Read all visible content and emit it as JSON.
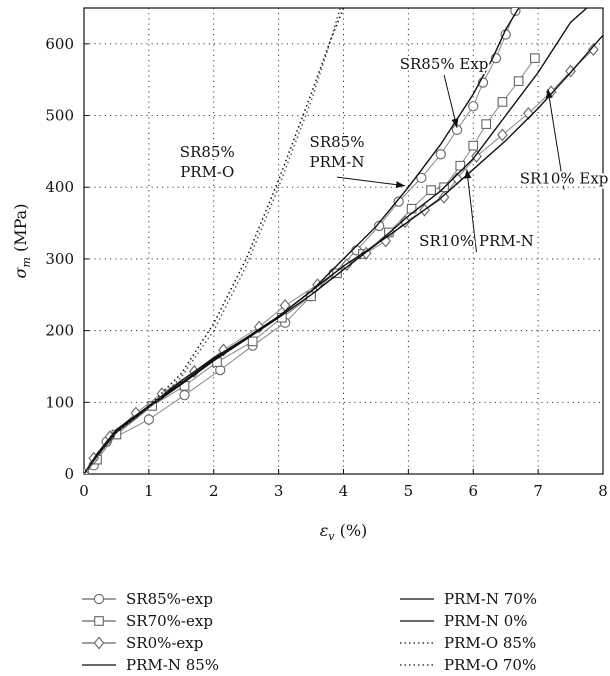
{
  "chart_data": {
    "type": "line",
    "xlabel": "ε_v (%)",
    "ylabel": "σ_m (MPa)",
    "xlim": [
      0,
      8
    ],
    "ylim": [
      0,
      650
    ],
    "xticks": [
      0,
      1,
      2,
      3,
      4,
      5,
      6,
      7,
      8
    ],
    "yticks": [
      0,
      100,
      200,
      300,
      400,
      500,
      600
    ],
    "grid": "dotted",
    "legend_position": "below",
    "series": [
      {
        "name": "SR85%-exp",
        "kind": "exp",
        "marker": "circle",
        "color": "#888888",
        "x": [
          0,
          0.15,
          0.35,
          1.0,
          1.55,
          2.1,
          2.6,
          3.1,
          3.5,
          3.85,
          4.2,
          4.55,
          4.85,
          5.2,
          5.5,
          5.75,
          6.0,
          6.15,
          6.35,
          6.5,
          6.65
        ],
        "y": [
          0,
          12,
          45,
          76,
          110,
          145,
          179,
          211,
          248,
          280,
          312,
          346,
          380,
          413,
          446,
          480,
          513,
          546,
          580,
          613,
          646
        ]
      },
      {
        "name": "SR70%-exp",
        "kind": "exp",
        "marker": "square",
        "color": "#888888",
        "x": [
          0,
          0.2,
          0.5,
          1.05,
          1.55,
          2.05,
          2.6,
          3.05,
          3.5,
          3.9,
          4.3,
          4.7,
          5.05,
          5.35,
          5.55,
          5.8,
          6.0,
          6.2,
          6.45,
          6.7,
          6.95
        ],
        "y": [
          0,
          20,
          55,
          95,
          123,
          156,
          185,
          218,
          248,
          280,
          307,
          337,
          370,
          396,
          400,
          430,
          458,
          488,
          519,
          548,
          580
        ]
      },
      {
        "name": "SR0%-exp",
        "kind": "exp",
        "marker": "diamond",
        "color": "#888888",
        "x": [
          0,
          0.15,
          0.4,
          0.8,
          1.2,
          1.7,
          2.15,
          2.7,
          3.1,
          3.6,
          4.05,
          4.35,
          4.65,
          4.95,
          5.25,
          5.55,
          5.75,
          6.05,
          6.45,
          6.85,
          7.2,
          7.5,
          7.85
        ],
        "y": [
          0,
          22,
          52,
          85,
          112,
          143,
          173,
          205,
          235,
          264,
          292,
          308,
          325,
          352,
          368,
          386,
          412,
          443,
          473,
          503,
          533,
          562,
          592
        ]
      },
      {
        "name": "PRM-N 85%",
        "kind": "model",
        "style": "solid",
        "color": "#111111",
        "x": [
          0,
          0.2,
          0.5,
          1.0,
          1.5,
          2.0,
          2.5,
          3.0,
          3.5,
          4.0,
          4.5,
          5.0,
          5.5,
          6.0,
          6.3,
          6.5,
          6.7
        ],
        "y": [
          0,
          28,
          62,
          95,
          130,
          162,
          190,
          220,
          255,
          300,
          345,
          400,
          460,
          530,
          580,
          620,
          650
        ]
      },
      {
        "name": "PRM-N 70%",
        "kind": "model",
        "style": "solid",
        "color": "#111111",
        "x": [
          0,
          0.2,
          0.5,
          1.0,
          1.5,
          2.0,
          2.5,
          3.0,
          3.5,
          4.0,
          4.5,
          5.0,
          5.5,
          6.0,
          6.5,
          7.0,
          7.5,
          7.75
        ],
        "y": [
          0,
          26,
          60,
          95,
          127,
          160,
          188,
          218,
          250,
          285,
          320,
          360,
          395,
          440,
          500,
          560,
          630,
          650
        ]
      },
      {
        "name": "PRM-N 0%",
        "kind": "model",
        "style": "solid",
        "color": "#111111",
        "x": [
          0,
          0.2,
          0.5,
          1.0,
          1.5,
          2.0,
          2.5,
          3.0,
          3.5,
          4.0,
          4.5,
          5.0,
          5.5,
          6.0,
          6.5,
          7.0,
          7.5,
          8.0
        ],
        "y": [
          0,
          25,
          58,
          93,
          125,
          158,
          188,
          220,
          255,
          290,
          320,
          352,
          385,
          425,
          465,
          510,
          560,
          612
        ]
      },
      {
        "name": "PRM-O 85%",
        "kind": "model",
        "style": "dotted",
        "color": "#111111",
        "x": [
          0,
          0.5,
          1.0,
          1.5,
          2.0,
          2.5,
          3.0,
          3.5,
          3.8,
          4.0
        ],
        "y": [
          0,
          60,
          95,
          140,
          210,
          300,
          410,
          530,
          605,
          650
        ]
      },
      {
        "name": "PRM-O 70%",
        "kind": "model",
        "style": "dotted",
        "color": "#555555",
        "x": [
          0,
          0.5,
          1.0,
          1.5,
          2.0,
          2.5,
          3.0,
          3.5,
          3.75,
          3.95
        ],
        "y": [
          0,
          58,
          92,
          135,
          200,
          290,
          400,
          520,
          590,
          650
        ]
      }
    ],
    "annotations": [
      {
        "lines": [
          "SR85% Exp"
        ],
        "x": 5.55,
        "y": 565,
        "arrow_to": [
          5.75,
          483
        ]
      },
      {
        "lines": [
          "SR85%",
          "PRM-N"
        ],
        "x": 3.9,
        "y": 442,
        "arrow_to": [
          4.95,
          402
        ]
      },
      {
        "lines": [
          "SR85%",
          "PRM-O"
        ],
        "x": 1.9,
        "y": 428
      },
      {
        "lines": [
          "SR10% Exp"
        ],
        "x": 7.4,
        "y": 405,
        "arrow_to": [
          7.15,
          537
        ]
      },
      {
        "lines": [
          "SR10% PRM-N"
        ],
        "x": 6.05,
        "y": 318,
        "arrow_to": [
          5.9,
          425
        ]
      }
    ]
  }
}
